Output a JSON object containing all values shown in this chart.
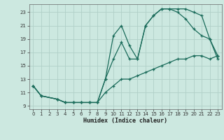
{
  "xlabel": "Humidex (Indice chaleur)",
  "bg_color": "#cce8e0",
  "grid_color": "#b0d0c8",
  "line_color": "#1a6b5a",
  "xlim": [
    -0.5,
    23.5
  ],
  "ylim": [
    8.5,
    24.2
  ],
  "xticks": [
    0,
    1,
    2,
    3,
    4,
    5,
    6,
    7,
    8,
    9,
    10,
    11,
    12,
    13,
    14,
    15,
    16,
    17,
    18,
    19,
    20,
    21,
    22,
    23
  ],
  "yticks": [
    9,
    11,
    13,
    15,
    17,
    19,
    21,
    23
  ],
  "line1_x": [
    0,
    1,
    3,
    4,
    5,
    6,
    7,
    8,
    9,
    10,
    11,
    12,
    13,
    14,
    15,
    16,
    17,
    18,
    19,
    20,
    21,
    22,
    23
  ],
  "line1_y": [
    12,
    10.5,
    10,
    9.5,
    9.5,
    9.5,
    9.5,
    9.5,
    13,
    19.5,
    21,
    18,
    16,
    21,
    22.5,
    23.5,
    23.5,
    23.5,
    23.5,
    23,
    22.5,
    19,
    16
  ],
  "line2_x": [
    0,
    1,
    3,
    4,
    5,
    6,
    7,
    8,
    9,
    10,
    11,
    12,
    13,
    14,
    15,
    16,
    17,
    18,
    19,
    20,
    21,
    22,
    23
  ],
  "line2_y": [
    12,
    10.5,
    10,
    9.5,
    9.5,
    9.5,
    9.5,
    9.5,
    13,
    16,
    18.5,
    16,
    16,
    21,
    22.5,
    23.5,
    23.5,
    23,
    22,
    20.5,
    19.5,
    19,
    16.5
  ],
  "line3_x": [
    0,
    1,
    3,
    4,
    5,
    6,
    7,
    8,
    9,
    10,
    11,
    12,
    13,
    14,
    15,
    16,
    17,
    18,
    19,
    20,
    21,
    22,
    23
  ],
  "line3_y": [
    12,
    10.5,
    10,
    9.5,
    9.5,
    9.5,
    9.5,
    9.5,
    11,
    12,
    13,
    13,
    13.5,
    14,
    14.5,
    15,
    15.5,
    16,
    16,
    16.5,
    16.5,
    16,
    16.5
  ]
}
